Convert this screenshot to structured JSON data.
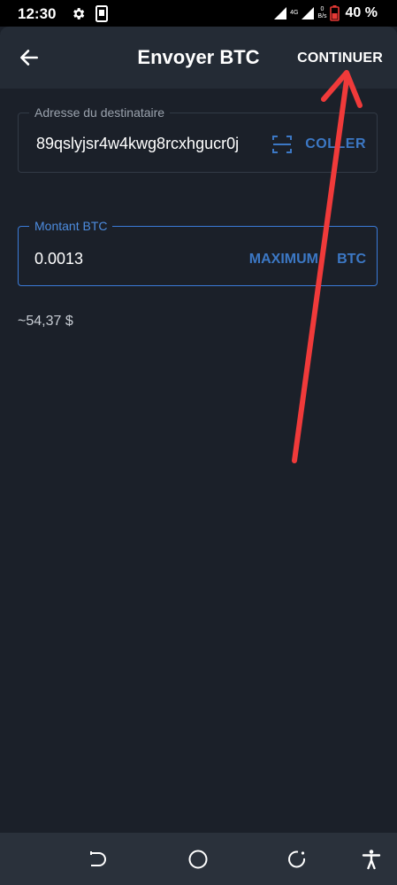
{
  "status_bar": {
    "time": "12:30",
    "network": "4G",
    "speed_value": "0",
    "speed_unit": "B/s",
    "battery": "40 %",
    "battery_color": "#e53935",
    "icons": [
      "gear-icon",
      "phone-icon",
      "signal-icon",
      "battery-icon"
    ]
  },
  "header": {
    "title": "Envoyer BTC",
    "continue_label": "CONTINUER",
    "icons": [
      "back-arrow-icon"
    ]
  },
  "address_field": {
    "label": "Adresse du destinataire",
    "value": "89qslyjsr4w4kwg8rcxhgucr0j",
    "paste_label": "COLLER",
    "icons": [
      "scan-icon"
    ]
  },
  "amount_field": {
    "label": "Montant BTC",
    "value": "0.0013",
    "max_label": "MAXIMUM",
    "unit": "BTC"
  },
  "fiat_estimate": "~54,37 $",
  "colors": {
    "background": "#1b2029",
    "header": "#242b35",
    "accent": "#3c78c5",
    "annotation": "#f03a3a"
  },
  "nav_bar": {
    "icons": [
      "back-gesture-icon",
      "home-icon",
      "recents-icon",
      "accessibility-icon"
    ]
  }
}
